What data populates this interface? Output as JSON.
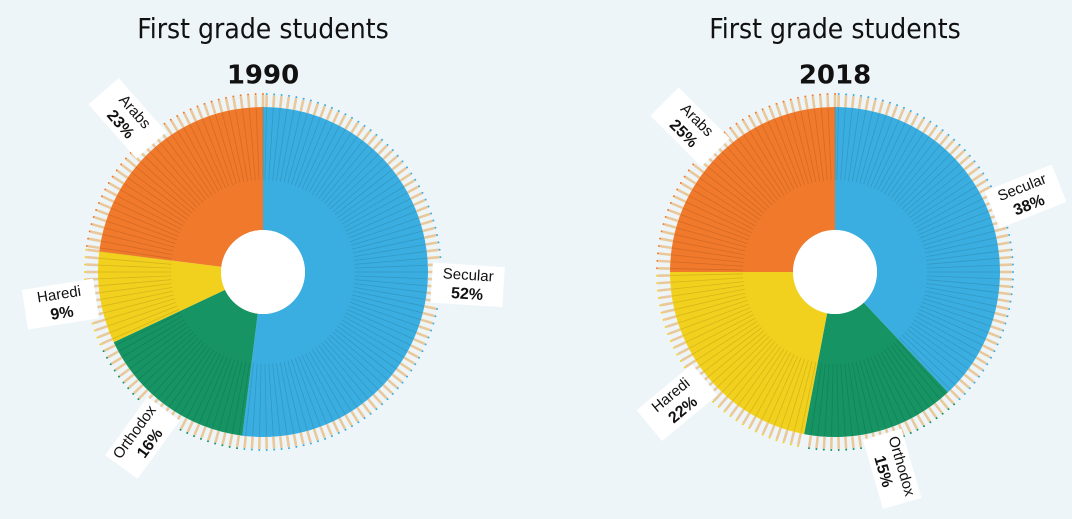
{
  "chart_data": [
    {
      "type": "pie",
      "title": "First grade students",
      "subtitle": "1990",
      "categories": [
        "Secular",
        "Orthodox",
        "Haredi",
        "Arabs"
      ],
      "values": [
        52,
        16,
        9,
        23
      ],
      "value_labels": [
        "52%",
        "16%",
        "9%",
        "23%"
      ],
      "colors": [
        "#3aaee0",
        "#169463",
        "#f2d01e",
        "#f0792b"
      ]
    },
    {
      "type": "pie",
      "title": "First grade students",
      "subtitle": "2018",
      "categories": [
        "Secular",
        "Orthodox",
        "Haredi",
        "Arabs"
      ],
      "values": [
        38,
        15,
        22,
        25
      ],
      "value_labels": [
        "38%",
        "15%",
        "22%",
        "25%"
      ],
      "colors": [
        "#3aaee0",
        "#169463",
        "#f2d01e",
        "#f0792b"
      ]
    }
  ]
}
